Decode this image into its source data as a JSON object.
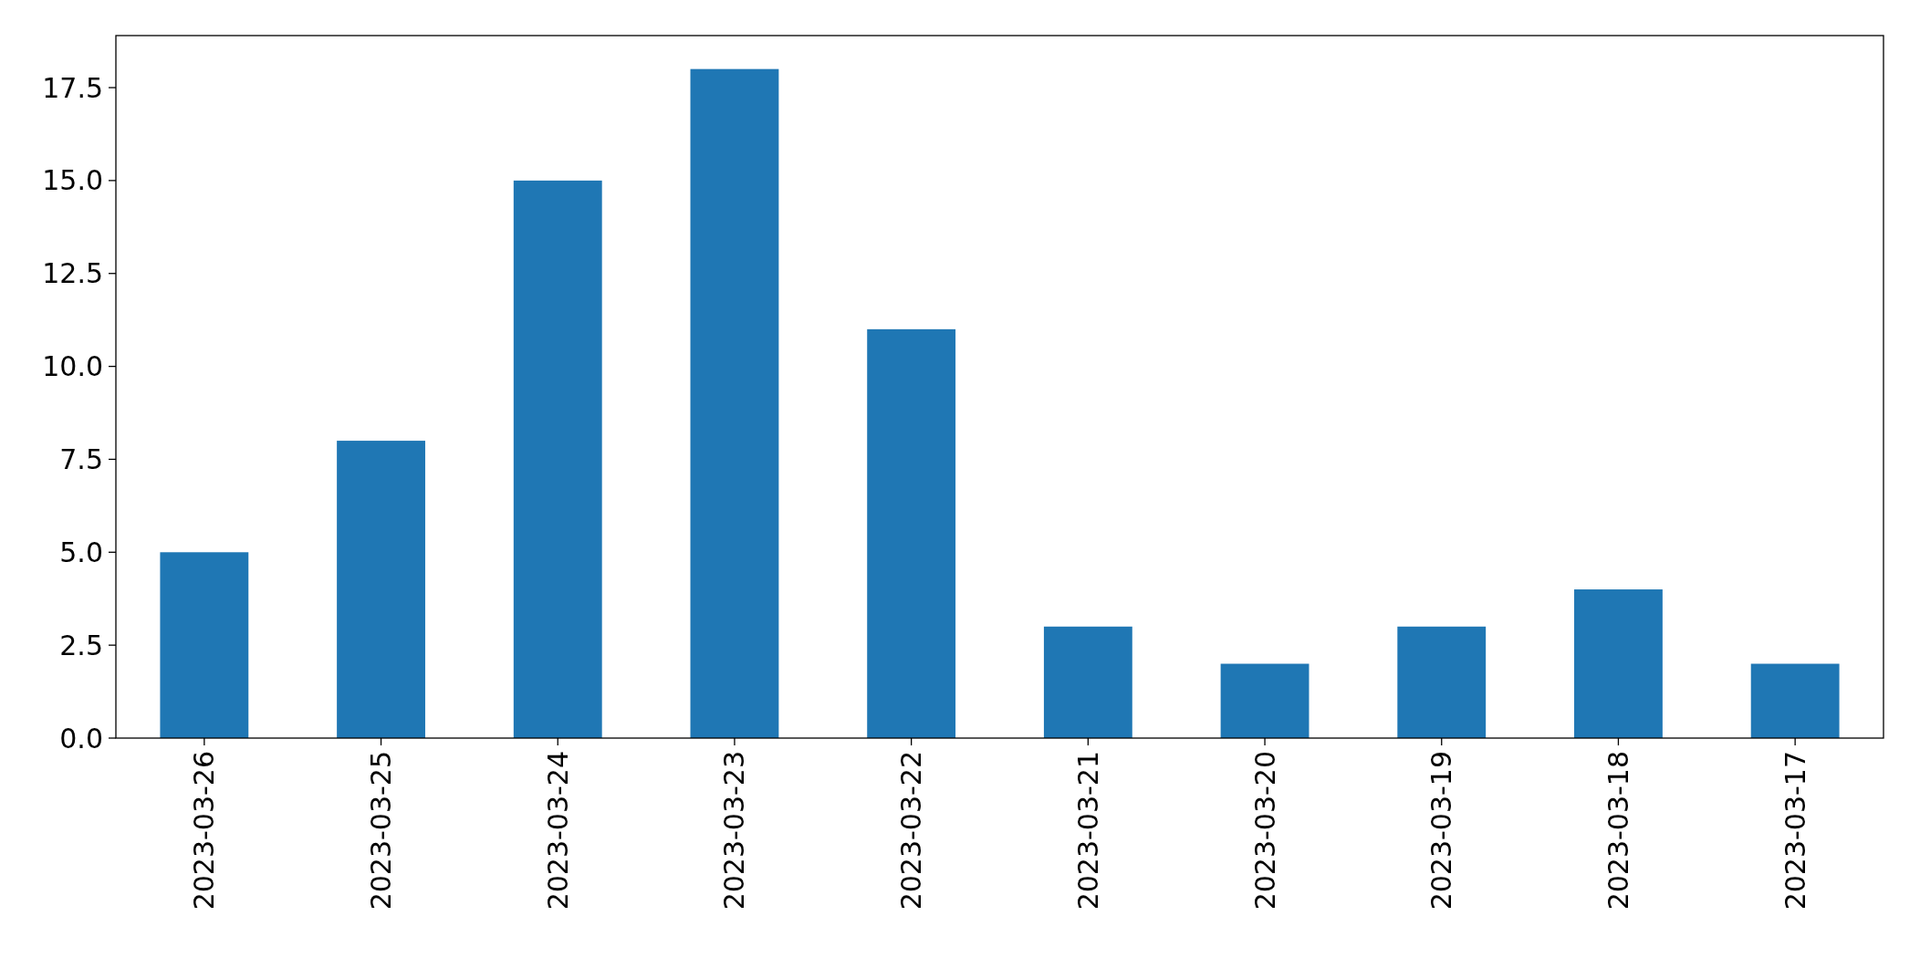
{
  "chart_data": {
    "type": "bar",
    "categories": [
      "2023-03-26",
      "2023-03-25",
      "2023-03-24",
      "2023-03-23",
      "2023-03-22",
      "2023-03-21",
      "2023-03-20",
      "2023-03-19",
      "2023-03-18",
      "2023-03-17"
    ],
    "values": [
      5,
      8,
      15,
      18,
      11,
      3,
      2,
      3,
      4,
      2
    ],
    "color": "#1f77b4",
    "ylim": [
      0,
      18.9
    ],
    "yticks": [
      {
        "value": 0,
        "label": "0.0"
      },
      {
        "value": 2.5,
        "label": "2.5"
      },
      {
        "value": 5,
        "label": "5.0"
      },
      {
        "value": 7.5,
        "label": "7.5"
      },
      {
        "value": 10,
        "label": "10.0"
      },
      {
        "value": 12.5,
        "label": "12.5"
      },
      {
        "value": 15,
        "label": "15.0"
      },
      {
        "value": 17.5,
        "label": "17.5"
      }
    ]
  }
}
